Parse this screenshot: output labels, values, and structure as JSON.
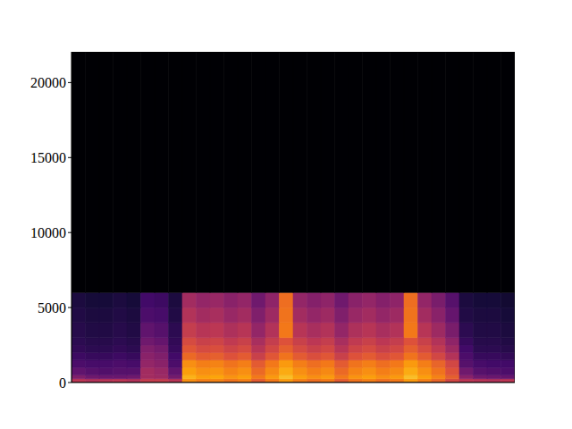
{
  "chart_data": {
    "type": "heatmap",
    "tick_labels": "y",
    "xlim": [
      0,
      32
    ],
    "ylim": [
      0,
      22050
    ],
    "yticks": [
      0,
      5000,
      10000,
      15000,
      20000
    ],
    "x_bins": [
      0,
      1,
      2,
      3,
      4,
      5,
      6,
      7,
      8,
      9,
      10,
      11,
      12,
      13,
      14,
      15,
      16,
      17,
      18,
      19,
      20,
      21,
      22,
      23,
      24,
      25,
      26,
      27,
      28,
      29,
      30,
      31,
      32
    ],
    "y_bins": [
      0,
      250,
      500,
      1000,
      1500,
      2000,
      2500,
      3000,
      4000,
      5000,
      6000,
      22050
    ],
    "z_range": [
      -80,
      0
    ],
    "cells": [
      [
        -40,
        -42,
        -41,
        -40,
        -42,
        -38,
        -38,
        -41,
        -20,
        -23,
        -22,
        -25,
        -23,
        -30,
        -24,
        -18,
        -23,
        -26,
        -24,
        -30,
        -25,
        -23,
        -26,
        -24,
        -18,
        -23,
        -28,
        -35,
        -40,
        -41,
        -42,
        -40
      ],
      [
        -52,
        -55,
        -56,
        -56,
        -55,
        -45,
        -46,
        -54,
        -14,
        -17,
        -16,
        -19,
        -17,
        -24,
        -18,
        -12,
        -17,
        -20,
        -18,
        -24,
        -19,
        -17,
        -20,
        -18,
        -12,
        -17,
        -22,
        -29,
        -50,
        -55,
        -56,
        -57
      ],
      [
        -58,
        -60,
        -61,
        -60,
        -60,
        -45,
        -47,
        -58,
        -17,
        -20,
        -19,
        -22,
        -20,
        -27,
        -21,
        -15,
        -20,
        -23,
        -21,
        -27,
        -22,
        -20,
        -23,
        -21,
        -15,
        -20,
        -25,
        -32,
        -55,
        -60,
        -61,
        -62
      ],
      [
        -62,
        -63,
        -63,
        -62,
        -63,
        -48,
        -50,
        -62,
        -20,
        -23,
        -22,
        -25,
        -23,
        -30,
        -24,
        -18,
        -23,
        -26,
        -24,
        -30,
        -25,
        -23,
        -26,
        -24,
        -18,
        -23,
        -28,
        -35,
        -60,
        -63,
        -64,
        -64
      ],
      [
        -65,
        -66,
        -66,
        -65,
        -66,
        -50,
        -52,
        -64,
        -27,
        -30,
        -29,
        -32,
        -30,
        -37,
        -31,
        -25,
        -30,
        -33,
        -31,
        -37,
        -32,
        -30,
        -33,
        -31,
        -25,
        -30,
        -35,
        -42,
        -62,
        -66,
        -66,
        -67
      ],
      [
        -67,
        -68,
        -68,
        -67,
        -68,
        -52,
        -54,
        -66,
        -31,
        -34,
        -33,
        -36,
        -34,
        -41,
        -35,
        -29,
        -34,
        -37,
        -35,
        -41,
        -36,
        -34,
        -37,
        -35,
        -29,
        -34,
        -39,
        -46,
        -64,
        -68,
        -68,
        -69
      ],
      [
        -68,
        -69,
        -69,
        -68,
        -69,
        -55,
        -57,
        -67,
        -34,
        -37,
        -36,
        -39,
        -37,
        -44,
        -38,
        -32,
        -37,
        -40,
        -38,
        -44,
        -39,
        -37,
        -40,
        -38,
        -32,
        -37,
        -42,
        -49,
        -66,
        -69,
        -69,
        -70
      ],
      [
        -69,
        -70,
        -70,
        -69,
        -70,
        -58,
        -60,
        -68,
        -38,
        -41,
        -40,
        -43,
        -41,
        -48,
        -42,
        -24,
        -41,
        -44,
        -42,
        -48,
        -43,
        -41,
        -44,
        -42,
        -24,
        -41,
        -46,
        -53,
        -68,
        -70,
        -70,
        -71
      ],
      [
        -70,
        -71,
        -71,
        -70,
        -71,
        -62,
        -63,
        -70,
        -42,
        -45,
        -44,
        -47,
        -45,
        -52,
        -46,
        -25,
        -45,
        -48,
        -46,
        -52,
        -47,
        -45,
        -48,
        -46,
        -25,
        -45,
        -50,
        -57,
        -70,
        -71,
        -71,
        -72
      ],
      [
        -71,
        -72,
        -72,
        -71,
        -72,
        -64,
        -65,
        -71,
        -45,
        -48,
        -47,
        -50,
        -48,
        -55,
        -49,
        -26,
        -48,
        -51,
        -49,
        -55,
        -50,
        -48,
        -51,
        -49,
        -26,
        -48,
        -53,
        -60,
        -71,
        -72,
        -72,
        -73
      ],
      [
        -80,
        -80,
        -80,
        -80,
        -80,
        -80,
        -80,
        -80,
        -80,
        -80,
        -80,
        -80,
        -80,
        -80,
        -80,
        -80,
        -80,
        -80,
        -80,
        -80,
        -80,
        -80,
        -80,
        -80,
        -80,
        -80,
        -80,
        -80,
        -80,
        -80,
        -80,
        -80
      ]
    ]
  }
}
